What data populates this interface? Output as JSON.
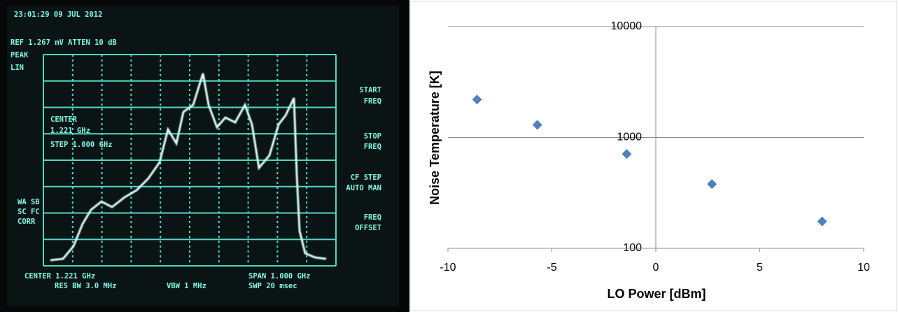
{
  "analyzer_screen": {
    "timestamp": "23:01:29  09 JUL 2012",
    "ref_line": "REF 1.267 mV  ATTEN 10 dB",
    "mode": [
      "PEAK",
      "LIN"
    ],
    "center_box": [
      "CENTER",
      "1.221 GHz",
      "STEP 1.000 GHz"
    ],
    "left_flags": [
      "WA SB",
      "SC FC",
      "CORR"
    ],
    "softkeys": [
      [
        "START",
        "FREQ"
      ],
      [
        "STOP",
        "FREQ"
      ],
      [
        "CF STEP",
        "AUTO MAN"
      ],
      [
        "FREQ",
        "OFFSET"
      ]
    ],
    "footer": [
      "CENTER 1.221 GHz",
      "SPAN 1.000 GHz",
      "RES BW 3.0 MHz",
      "VBW 1 MHz",
      "SWP 20 msec"
    ]
  },
  "chart_data": {
    "type": "scatter",
    "x_label": "LO Power [dBm]",
    "y_label": "Noise Temperature [K]",
    "series": [
      {
        "color": "#4f81bd",
        "x": [
          -8.6,
          -5.7,
          -1.4,
          2.7,
          8.0
        ],
        "values": [
          2200,
          1300,
          710,
          380,
          175
        ]
      }
    ],
    "xlim": [
      -10,
      10
    ],
    "xticks": [
      -10,
      -5,
      0,
      5,
      10
    ],
    "ylim": [
      100,
      10000
    ],
    "yticks": [
      100,
      1000,
      10000
    ],
    "yscale": "log",
    "y_axis_crosses": 0,
    "grid": true
  }
}
